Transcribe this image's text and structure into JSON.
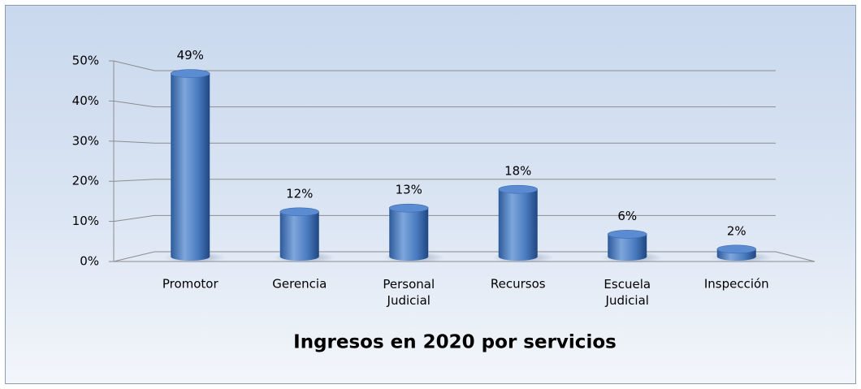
{
  "chart_data": {
    "type": "bar3d",
    "title": "Ingresos en 2020 por servicios",
    "categories": [
      "Promotor",
      "Gerencia",
      "Personal Judicial",
      "Recursos",
      "Escuela Judicial",
      "Inspección"
    ],
    "values": [
      49,
      12,
      13,
      18,
      6,
      2
    ],
    "value_labels": [
      "49%",
      "12%",
      "13%",
      "18%",
      "6%",
      "2%"
    ],
    "color": "#4f81bd",
    "ylim": [
      0,
      50
    ],
    "yticks": [
      {
        "value": 0,
        "label": "0%"
      },
      {
        "value": 10,
        "label": "10%"
      },
      {
        "value": 20,
        "label": "20%"
      },
      {
        "value": 30,
        "label": "30%"
      },
      {
        "value": 40,
        "label": "40%"
      },
      {
        "value": 50,
        "label": "50%"
      }
    ],
    "grid": true
  }
}
